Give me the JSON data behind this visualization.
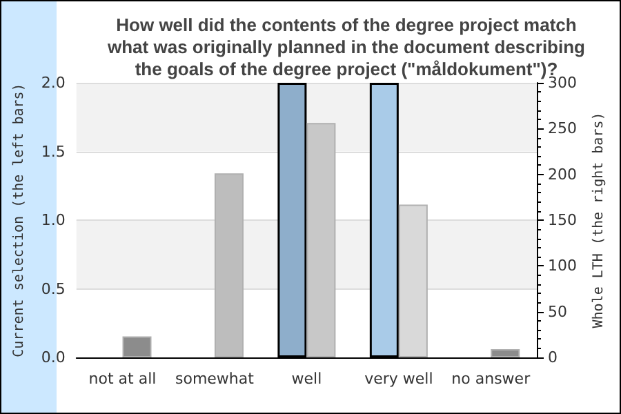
{
  "chart_data": {
    "type": "bar",
    "title": "How well did the contents of the degree project match\nwhat was originally planned in the document describing\nthe goals of the degree project (\"måldokument\")?",
    "ylabel": "Current selection (the left bars)",
    "y2label": "Whole LTH (the right bars)",
    "categories": [
      "not at all",
      "somewhat",
      "well",
      "very well",
      "no answer"
    ],
    "series": [
      {
        "values": [
          0,
          0,
          2,
          2,
          0
        ],
        "colors": [
          null,
          null,
          "#8eaecb",
          "#a9cbe8",
          null
        ]
      },
      {
        "axis": "y2",
        "values": [
          23,
          201,
          256,
          167,
          9
        ],
        "colors": [
          "#8c8c8c",
          "#bdbdbd",
          "#c8c8c8",
          "#d9d9d9",
          "#8c8c8c"
        ]
      }
    ],
    "ylim": [
      0,
      2
    ],
    "yticks": [
      {
        "value": 0,
        "label": "0.0"
      },
      {
        "value": 0.5,
        "label": "0.5"
      },
      {
        "value": 1,
        "label": "1.0"
      },
      {
        "value": 1.5,
        "label": "1.5"
      },
      {
        "value": 2,
        "label": "2.0"
      }
    ],
    "y2lim": [
      0,
      300
    ],
    "y2ticks": [
      0,
      50,
      100,
      150,
      200,
      250,
      300
    ],
    "grid": "y"
  }
}
